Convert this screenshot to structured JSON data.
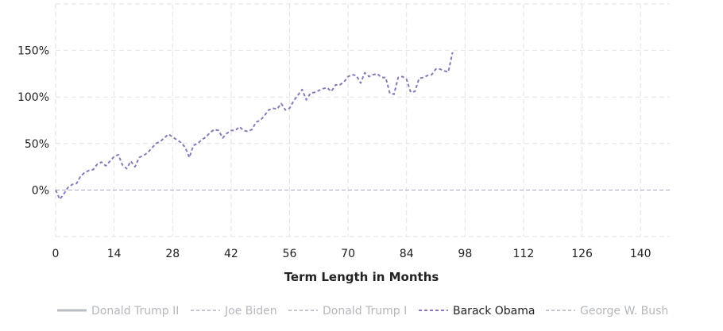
{
  "chart_data": {
    "type": "line",
    "title": "",
    "xlabel": "Term Length in Months",
    "ylabel": "",
    "xlim": [
      0,
      147
    ],
    "ylim": [
      -50,
      200
    ],
    "x_ticks": [
      "0",
      "14",
      "28",
      "42",
      "56",
      "70",
      "84",
      "98",
      "112",
      "126",
      "140"
    ],
    "y_ticks": [
      "0%",
      "50%",
      "100%",
      "150%"
    ],
    "grid": true,
    "legend_position": "bottom",
    "series": [
      {
        "name": "Donald Trump II",
        "active": false,
        "style": "solid",
        "color": "#b8bec4",
        "values": []
      },
      {
        "name": "Joe Biden",
        "active": false,
        "style": "dashed",
        "color": "#c4c8cc",
        "values": []
      },
      {
        "name": "Donald Trump I",
        "active": false,
        "style": "dashed",
        "color": "#c4c8cc",
        "values": []
      },
      {
        "name": "Barack Obama",
        "active": true,
        "style": "dashed",
        "color": "#8a78b8",
        "x": [
          0,
          1,
          2,
          3,
          4,
          5,
          6,
          7,
          8,
          9,
          10,
          11,
          12,
          13,
          14,
          15,
          16,
          17,
          18,
          19,
          20,
          21,
          22,
          23,
          24,
          25,
          26,
          27,
          28,
          29,
          30,
          31,
          32,
          33,
          34,
          35,
          36,
          37,
          38,
          39,
          40,
          41,
          42,
          43,
          44,
          45,
          46,
          47,
          48,
          49,
          50,
          51,
          52,
          53,
          54,
          55,
          56,
          57,
          58,
          59,
          60,
          61,
          62,
          63,
          64,
          65,
          66,
          67,
          68,
          69,
          70,
          71,
          72,
          73,
          74,
          75,
          76,
          77,
          78,
          79,
          80,
          81,
          82,
          83,
          84,
          85,
          86,
          87,
          88,
          89,
          90,
          91,
          92,
          93,
          94,
          95
        ],
        "values": [
          0,
          -10,
          -4,
          3,
          6,
          7,
          15,
          19,
          21,
          22,
          28,
          30,
          26,
          31,
          36,
          38,
          27,
          23,
          31,
          25,
          35,
          37,
          40,
          45,
          50,
          52,
          56,
          60,
          57,
          54,
          51,
          46,
          35,
          48,
          50,
          54,
          57,
          62,
          65,
          64,
          56,
          61,
          64,
          64,
          68,
          64,
          63,
          65,
          73,
          75,
          80,
          86,
          88,
          87,
          93,
          86,
          88,
          96,
          102,
          108,
          97,
          104,
          105,
          107,
          109,
          110,
          106,
          113,
          113,
          116,
          122,
          124,
          123,
          115,
          126,
          122,
          124,
          125,
          121,
          121,
          104,
          103,
          121,
          122,
          119,
          105,
          106,
          120,
          121,
          123,
          124,
          130,
          130,
          128,
          127,
          148
        ]
      },
      {
        "name": "George W. Bush",
        "active": false,
        "style": "dashed",
        "color": "#c4c8cc",
        "values": []
      }
    ]
  }
}
